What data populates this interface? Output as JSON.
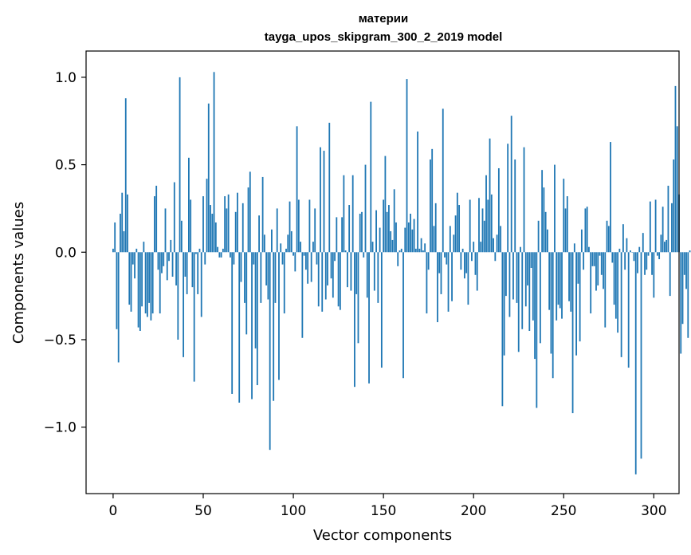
{
  "chart_data": {
    "type": "bar",
    "title_line1": "материи",
    "title_line2": "tayga_upos_skipgram_300_2_2019 model",
    "xlabel": "Vector components",
    "ylabel": "Components values",
    "xlim": [
      -15,
      314
    ],
    "ylim": [
      -1.38,
      1.15
    ],
    "xticks": [
      0,
      50,
      100,
      150,
      200,
      250,
      300
    ],
    "xtick_labels": [
      "0",
      "50",
      "100",
      "150",
      "200",
      "250",
      "300"
    ],
    "yticks": [
      -1.0,
      -0.5,
      0.0,
      0.5,
      1.0
    ],
    "ytick_labels": [
      "−1.0",
      "−0.5",
      "0.0",
      "0.5",
      "1.0"
    ],
    "bar_color": "#1f77b4",
    "values": [
      0.02,
      0.17,
      -0.44,
      -0.63,
      0.22,
      0.34,
      0.12,
      0.88,
      0.33,
      -0.3,
      -0.34,
      -0.07,
      -0.15,
      0.02,
      -0.43,
      -0.45,
      -0.31,
      0.06,
      -0.35,
      -0.37,
      -0.29,
      -0.39,
      -0.35,
      0.32,
      0.38,
      -0.1,
      -0.35,
      -0.12,
      -0.08,
      0.25,
      -0.16,
      -0.05,
      0.07,
      -0.14,
      0.4,
      -0.19,
      -0.5,
      1.0,
      0.18,
      -0.6,
      -0.14,
      -0.24,
      0.54,
      0.3,
      -0.2,
      -0.74,
      -0.01,
      -0.24,
      0.02,
      -0.37,
      0.32,
      -0.07,
      0.42,
      0.85,
      0.27,
      0.22,
      1.03,
      0.17,
      0.03,
      -0.03,
      -0.03,
      0.02,
      0.32,
      0.25,
      0.33,
      -0.03,
      -0.81,
      -0.07,
      0.23,
      0.34,
      -0.86,
      -0.17,
      0.28,
      -0.29,
      -0.47,
      0.37,
      0.46,
      -0.84,
      -0.07,
      -0.55,
      -0.76,
      0.21,
      -0.29,
      0.43,
      0.1,
      -0.19,
      -0.27,
      -1.13,
      0.13,
      -0.85,
      -0.29,
      0.25,
      -0.73,
      0.05,
      -0.07,
      -0.35,
      0.02,
      0.1,
      0.29,
      0.12,
      -0.02,
      -0.11,
      0.72,
      0.3,
      0.06,
      -0.49,
      -0.02,
      -0.1,
      -0.18,
      0.3,
      -0.17,
      0.06,
      0.25,
      -0.07,
      -0.31,
      0.6,
      -0.34,
      0.58,
      -0.27,
      -0.19,
      0.74,
      -0.15,
      -0.26,
      -0.05,
      0.2,
      -0.31,
      -0.33,
      0.2,
      0.44,
      0.01,
      -0.2,
      0.27,
      -0.22,
      0.44,
      -0.77,
      -0.24,
      -0.52,
      0.22,
      0.23,
      -0.03,
      0.5,
      -0.26,
      -0.75,
      0.86,
      0.06,
      -0.22,
      0.24,
      -0.29,
      0.14,
      -0.66,
      0.3,
      0.55,
      0.23,
      0.27,
      0.12,
      0.07,
      0.36,
      0.17,
      -0.08,
      0.01,
      0.02,
      -0.72,
      0.14,
      0.99,
      0.17,
      0.22,
      0.13,
      0.19,
      0.02,
      0.69,
      0.02,
      0.08,
      0.01,
      0.05,
      -0.35,
      -0.1,
      0.53,
      0.59,
      0.15,
      0.28,
      -0.4,
      -0.12,
      -0.24,
      0.82,
      -0.03,
      -0.07,
      -0.34,
      0.15,
      -0.28,
      0.1,
      0.21,
      0.34,
      0.27,
      -0.1,
      0.02,
      -0.15,
      -0.12,
      -0.3,
      0.3,
      -0.05,
      0.06,
      -0.13,
      -0.22,
      0.31,
      0.06,
      0.25,
      0.18,
      0.44,
      0.3,
      0.65,
      0.33,
      0.08,
      -0.05,
      0.1,
      0.48,
      0.15,
      -0.88,
      -0.59,
      -0.25,
      0.62,
      -0.37,
      0.78,
      -0.27,
      0.53,
      -0.29,
      -0.57,
      0.03,
      -0.44,
      0.6,
      -0.31,
      -0.19,
      -0.45,
      -0.09,
      -0.39,
      -0.61,
      -0.89,
      0.18,
      -0.52,
      0.47,
      0.37,
      0.23,
      0.13,
      -0.33,
      -0.58,
      -0.72,
      0.5,
      -0.39,
      -0.3,
      -0.32,
      -0.38,
      0.42,
      0.25,
      0.32,
      -0.28,
      -0.34,
      -0.92,
      0.05,
      -0.59,
      -0.18,
      -0.51,
      0.13,
      -0.1,
      0.25,
      0.26,
      0.03,
      -0.35,
      -0.08,
      -0.08,
      -0.22,
      -0.19,
      -0.02,
      -0.13,
      -0.21,
      -0.43,
      0.18,
      0.15,
      0.63,
      -0.06,
      -0.3,
      -0.38,
      -0.46,
      0.02,
      -0.6,
      0.16,
      -0.1,
      0.08,
      -0.66,
      0.01,
      0.0,
      -0.05,
      -1.27,
      -0.12,
      0.03,
      -1.18,
      0.11,
      -0.13,
      -0.1,
      -0.02,
      0.29,
      -0.13,
      -0.26,
      0.3,
      -0.02,
      -0.04,
      0.1,
      0.26,
      0.06,
      0.07,
      0.38,
      -0.25,
      0.28,
      0.53,
      0.95,
      0.72,
      0.33,
      -0.58,
      -0.41,
      -0.13,
      -0.21,
      -0.49,
      0.01,
      0.0
    ]
  }
}
